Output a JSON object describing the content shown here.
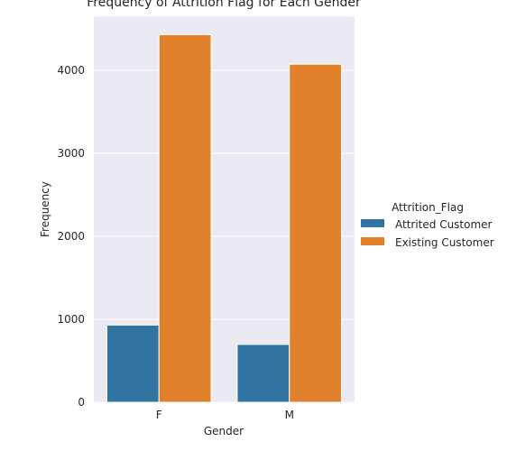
{
  "chart_data": {
    "type": "bar",
    "title": "Frequency of Attrition Flag for Each Gender",
    "xlabel": "Gender",
    "ylabel": "Frequency",
    "categories": [
      "F",
      "M"
    ],
    "series": [
      {
        "name": "Attrited Customer",
        "values": [
          930,
          697
        ],
        "color": "#3274a1"
      },
      {
        "name": "Existing Customer",
        "values": [
          4428,
          4072
        ],
        "color": "#e1812c"
      }
    ],
    "ylim": [
      0,
      4650
    ],
    "yticks": [
      0,
      1000,
      2000,
      3000,
      4000
    ],
    "grid": true,
    "legend": {
      "title": "Attrition_Flag",
      "placement": "right"
    },
    "background_color": "#eaeaf2"
  }
}
